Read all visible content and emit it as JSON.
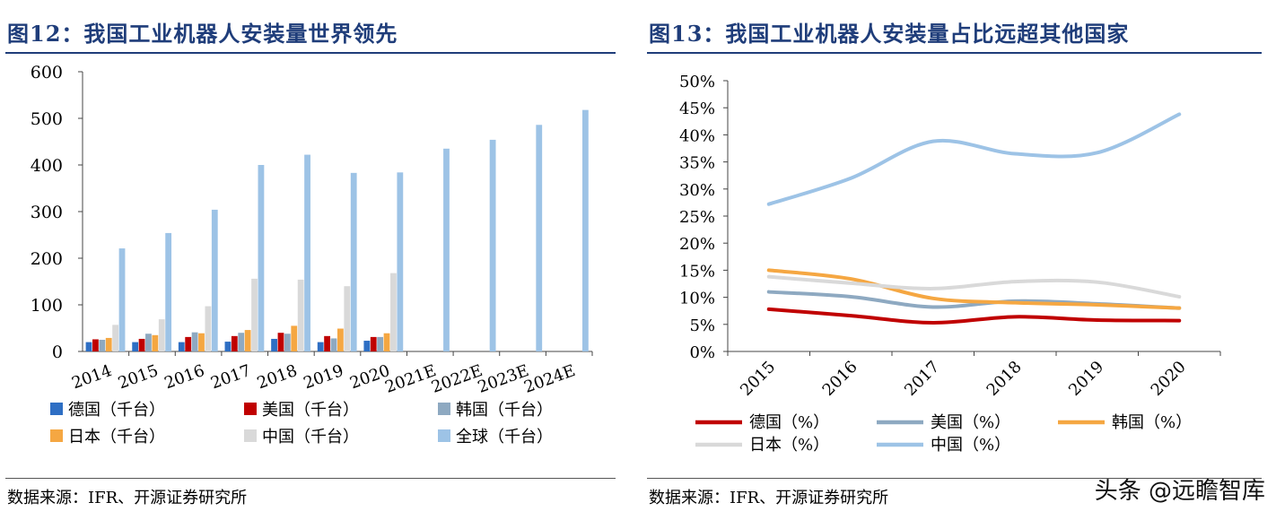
{
  "left": {
    "title": "图12：我国工业机器人安装量世界领先",
    "source": "数据来源：IFR、开源证券研究所"
  },
  "right": {
    "title": "图13：我国工业机器人安装量占比远超其他国家",
    "source": "数据来源：IFR、开源证券研究所"
  },
  "watermark": "头条 @远瞻智库",
  "chart_data": [
    {
      "type": "bar",
      "categories": [
        "2014",
        "2015",
        "2016",
        "2017",
        "2018",
        "2019",
        "2020",
        "2021E",
        "2022E",
        "2023E",
        "2024E"
      ],
      "ylim": [
        0,
        600
      ],
      "yticks": [
        "0",
        "100",
        "200",
        "300",
        "400",
        "500",
        "600"
      ],
      "grid": false,
      "legend_position": "bottom",
      "series": [
        {
          "name": "德国（千台）",
          "color": "#2e6fc4",
          "values": [
            20,
            20,
            20,
            21,
            27,
            20,
            23,
            null,
            null,
            null,
            null
          ]
        },
        {
          "name": "美国（千台）",
          "color": "#c00000",
          "values": [
            26,
            27,
            31,
            33,
            40,
            33,
            31,
            null,
            null,
            null,
            null
          ]
        },
        {
          "name": "韩国（千台）",
          "color": "#8ea9c1",
          "values": [
            25,
            38,
            41,
            40,
            38,
            28,
            31,
            null,
            null,
            null,
            null
          ]
        },
        {
          "name": "日本（千台）",
          "color": "#f5a742",
          "values": [
            29,
            35,
            39,
            46,
            55,
            49,
            39,
            null,
            null,
            null,
            null
          ]
        },
        {
          "name": "中国（千台）",
          "color": "#d9d9d9",
          "values": [
            57,
            69,
            97,
            156,
            154,
            140,
            168,
            null,
            null,
            null,
            null
          ]
        },
        {
          "name": "全球（千台）",
          "color": "#9dc3e6",
          "values": [
            221,
            254,
            304,
            400,
            422,
            383,
            384,
            435,
            454,
            486,
            518
          ]
        }
      ]
    },
    {
      "type": "line",
      "x": [
        "2015",
        "2016",
        "2017",
        "2018",
        "2019",
        "2020"
      ],
      "ylim": [
        0,
        50
      ],
      "yticks": [
        "0%",
        "5%",
        "10%",
        "15%",
        "20%",
        "25%",
        "30%",
        "35%",
        "40%",
        "45%",
        "50%"
      ],
      "grid": false,
      "legend_position": "bottom",
      "series": [
        {
          "name": "德国（%）",
          "color": "#c00000",
          "values": [
            7.8,
            6.6,
            5.3,
            6.4,
            5.8,
            5.7
          ]
        },
        {
          "name": "美国（%）",
          "color": "#8ea9c1",
          "values": [
            11.0,
            10.1,
            8.2,
            9.3,
            8.8,
            8.0
          ]
        },
        {
          "name": "韩国（%）",
          "color": "#f5a742",
          "values": [
            15.0,
            13.4,
            9.8,
            9.0,
            8.6,
            8.0
          ]
        },
        {
          "name": "日本（%）",
          "color": "#d9d9d9",
          "values": [
            13.8,
            12.6,
            11.6,
            12.9,
            12.8,
            10.1
          ]
        },
        {
          "name": "中国（%）",
          "color": "#9dc3e6",
          "values": [
            27.2,
            32.0,
            38.8,
            36.5,
            36.7,
            43.8
          ]
        }
      ]
    }
  ]
}
